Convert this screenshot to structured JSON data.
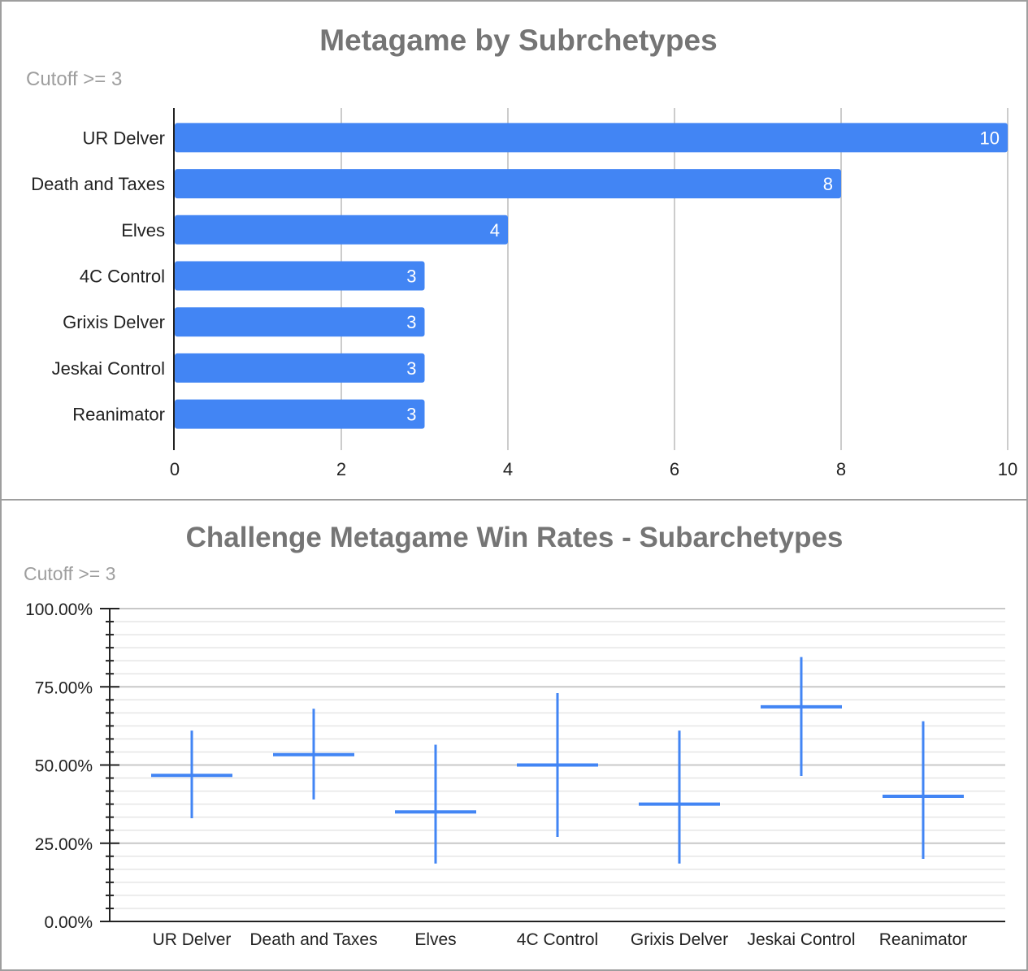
{
  "chart_data": [
    {
      "type": "bar",
      "orientation": "horizontal",
      "title": "Metagame by Subrchetypes",
      "subtitle": "Cutoff >= 3",
      "categories": [
        "UR Delver",
        "Death and Taxes",
        "Elves",
        "4C Control",
        "Grixis Delver",
        "Jeskai Control",
        "Reanimator"
      ],
      "values": [
        10,
        8,
        4,
        3,
        3,
        3,
        3
      ],
      "data_labels": [
        "10",
        "8",
        "4",
        "3",
        "3",
        "3",
        "3"
      ],
      "xlim": [
        0,
        10
      ],
      "x_ticks": [
        "0",
        "2",
        "4",
        "6",
        "8",
        "10"
      ],
      "grid": true,
      "color": "#4285f4"
    },
    {
      "type": "candlestick",
      "title": "Challenge Metagame Win Rates - Subarchetypes",
      "subtitle": "Cutoff >= 3",
      "categories": [
        "UR Delver",
        "Death and Taxes",
        "Elves",
        "4C Control",
        "Grixis Delver",
        "Jeskai Control",
        "Reanimator"
      ],
      "series": [
        {
          "values": [
            46.7,
            53.3,
            35.0,
            50.0,
            37.5,
            68.6,
            40.0
          ],
          "low": [
            33.0,
            39.0,
            18.5,
            27.0,
            18.5,
            46.5,
            20.0
          ],
          "high": [
            61.0,
            68.0,
            56.5,
            73.0,
            61.0,
            84.5,
            64.0
          ]
        }
      ],
      "ylim": [
        0,
        100
      ],
      "y_ticks": [
        "0.00%",
        "25.00%",
        "50.00%",
        "75.00%",
        "100.00%"
      ],
      "grid": true,
      "color": "#4285f4"
    }
  ]
}
